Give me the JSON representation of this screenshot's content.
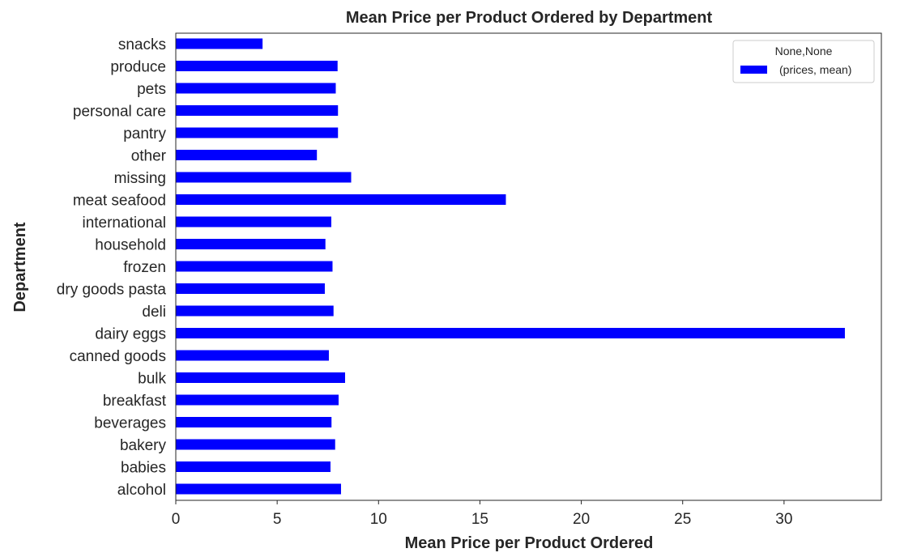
{
  "chart_data": {
    "type": "bar",
    "orientation": "horizontal",
    "title": "Mean Price per Product Ordered by Department",
    "xlabel": "Mean Price per Product Ordered",
    "ylabel": "Department",
    "categories": [
      "alcohol",
      "babies",
      "bakery",
      "beverages",
      "breakfast",
      "bulk",
      "canned goods",
      "dairy eggs",
      "deli",
      "dry goods pasta",
      "frozen",
      "household",
      "international",
      "meat seafood",
      "missing",
      "other",
      "pantry",
      "personal care",
      "pets",
      "produce",
      "snacks"
    ],
    "series": [
      {
        "name": "(prices, mean)",
        "color": "#0000ff",
        "values": [
          8.15,
          7.63,
          7.86,
          7.68,
          8.03,
          8.35,
          7.55,
          33.0,
          7.78,
          7.35,
          7.73,
          7.38,
          7.67,
          16.28,
          8.65,
          6.96,
          8.0,
          8.0,
          7.89,
          7.98,
          4.28
        ]
      }
    ],
    "xlim": [
      0,
      34.8
    ],
    "xticks": [
      0,
      5,
      10,
      15,
      20,
      25,
      30
    ],
    "grid": false,
    "legend": {
      "title": "None,None",
      "position": "top-right"
    }
  }
}
